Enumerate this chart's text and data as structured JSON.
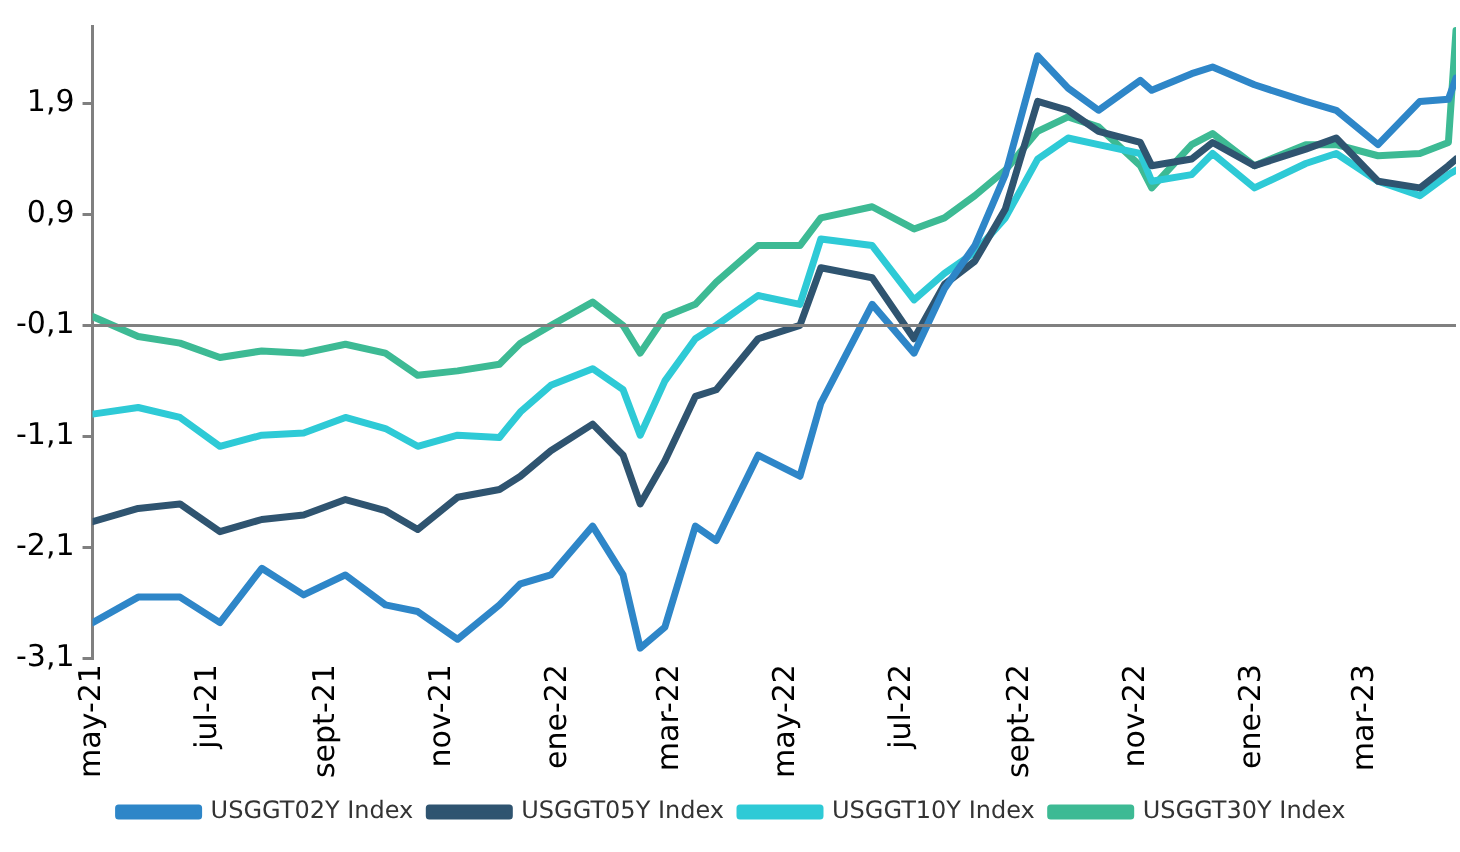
{
  "chart_data": {
    "type": "line",
    "x": [
      "2021-05-01",
      "2021-05-25",
      "2021-06-16",
      "2021-07-07",
      "2021-07-29",
      "2021-08-20",
      "2021-09-11",
      "2021-10-02",
      "2021-10-19",
      "2021-11-09",
      "2021-12-01",
      "2021-12-12",
      "2021-12-28",
      "2022-01-19",
      "2022-02-04",
      "2022-02-13",
      "2022-02-26",
      "2022-03-14",
      "2022-03-25",
      "2022-04-16",
      "2022-05-08",
      "2022-05-19",
      "2022-06-15",
      "2022-07-07",
      "2022-07-23",
      "2022-08-08",
      "2022-08-24",
      "2022-09-10",
      "2022-09-26",
      "2022-10-12",
      "2022-11-03",
      "2022-11-09",
      "2022-11-30",
      "2022-12-11",
      "2023-01-02",
      "2023-01-29",
      "2023-02-14",
      "2023-03-08",
      "2023-03-30",
      "2023-04-14",
      "2023-04-18"
    ],
    "series": [
      {
        "name": "USGGT02Y Index",
        "color": "#2e86c8",
        "values": [
          -2.78,
          -2.55,
          -2.55,
          -2.78,
          -2.29,
          -2.53,
          -2.35,
          -2.62,
          -2.68,
          -2.93,
          -2.62,
          -2.43,
          -2.35,
          -1.91,
          -2.35,
          -3.01,
          -2.82,
          -1.91,
          -2.04,
          -1.27,
          -1.46,
          -0.8,
          0.09,
          -0.35,
          0.23,
          0.62,
          1.26,
          2.33,
          2.04,
          1.84,
          2.11,
          2.02,
          2.17,
          2.23,
          2.07,
          1.92,
          1.84,
          1.53,
          1.92,
          1.94,
          2.13
        ]
      },
      {
        "name": "USGGT05Y Index",
        "color": "#2f5470",
        "values": [
          -1.87,
          -1.75,
          -1.71,
          -1.96,
          -1.85,
          -1.81,
          -1.67,
          -1.77,
          -1.94,
          -1.65,
          -1.58,
          -1.46,
          -1.23,
          -0.99,
          -1.27,
          -1.71,
          -1.32,
          -0.74,
          -0.68,
          -0.22,
          -0.1,
          0.42,
          0.33,
          -0.22,
          0.27,
          0.48,
          0.95,
          1.92,
          1.84,
          1.65,
          1.55,
          1.34,
          1.4,
          1.55,
          1.34,
          1.49,
          1.59,
          1.2,
          1.14,
          1.34,
          1.4
        ]
      },
      {
        "name": "USGGT10Y Index",
        "color": "#2ecad6",
        "values": [
          -0.9,
          -0.84,
          -0.93,
          -1.19,
          -1.09,
          -1.07,
          -0.93,
          -1.03,
          -1.19,
          -1.09,
          -1.11,
          -0.88,
          -0.64,
          -0.49,
          -0.68,
          -1.09,
          -0.6,
          -0.22,
          -0.1,
          0.17,
          0.09,
          0.68,
          0.62,
          0.13,
          0.37,
          0.56,
          0.87,
          1.4,
          1.59,
          1.53,
          1.45,
          1.2,
          1.26,
          1.45,
          1.14,
          1.36,
          1.45,
          1.2,
          1.07,
          1.26,
          1.3
        ]
      },
      {
        "name": "USGGT30Y Index",
        "color": "#3dba94",
        "values": [
          -0.02,
          -0.2,
          -0.26,
          -0.39,
          -0.33,
          -0.35,
          -0.27,
          -0.35,
          -0.55,
          -0.51,
          -0.45,
          -0.26,
          -0.1,
          0.11,
          -0.1,
          -0.35,
          -0.02,
          0.09,
          0.29,
          0.62,
          0.62,
          0.87,
          0.97,
          0.77,
          0.87,
          1.07,
          1.3,
          1.65,
          1.78,
          1.69,
          1.34,
          1.14,
          1.53,
          1.63,
          1.34,
          1.53,
          1.53,
          1.43,
          1.45,
          1.55,
          2.56
        ]
      }
    ],
    "xlim": [
      "2021-05-01",
      "2023-04-18"
    ],
    "xticks": [
      {
        "value": "2021-05-01",
        "label": "may-21"
      },
      {
        "value": "2021-07-01",
        "label": "jul-21"
      },
      {
        "value": "2021-09-01",
        "label": "sept-21"
      },
      {
        "value": "2021-11-01",
        "label": "nov-21"
      },
      {
        "value": "2022-01-01",
        "label": "ene-22"
      },
      {
        "value": "2022-03-01",
        "label": "mar-22"
      },
      {
        "value": "2022-05-01",
        "label": "may-22"
      },
      {
        "value": "2022-07-01",
        "label": "jul-22"
      },
      {
        "value": "2022-09-01",
        "label": "sept-22"
      },
      {
        "value": "2022-11-01",
        "label": "nov-22"
      },
      {
        "value": "2023-01-01",
        "label": "ene-23"
      },
      {
        "value": "2023-03-01",
        "label": "mar-23"
      }
    ],
    "ylim": [
      -3.1,
      2.6
    ],
    "yticks": [
      {
        "value": -3.1,
        "label": "-3,1"
      },
      {
        "value": -2.1,
        "label": "-2,1"
      },
      {
        "value": -1.1,
        "label": "-1,1"
      },
      {
        "value": -0.1,
        "label": "-0,1"
      },
      {
        "value": 0.9,
        "label": "0,9"
      },
      {
        "value": 1.9,
        "label": "1,9"
      }
    ],
    "ref_lines": [
      {
        "axis": "y",
        "value": -0.1,
        "color": "#808080"
      }
    ],
    "grid": false,
    "legend": "bottom",
    "marker": "none",
    "line_style": "solid"
  }
}
